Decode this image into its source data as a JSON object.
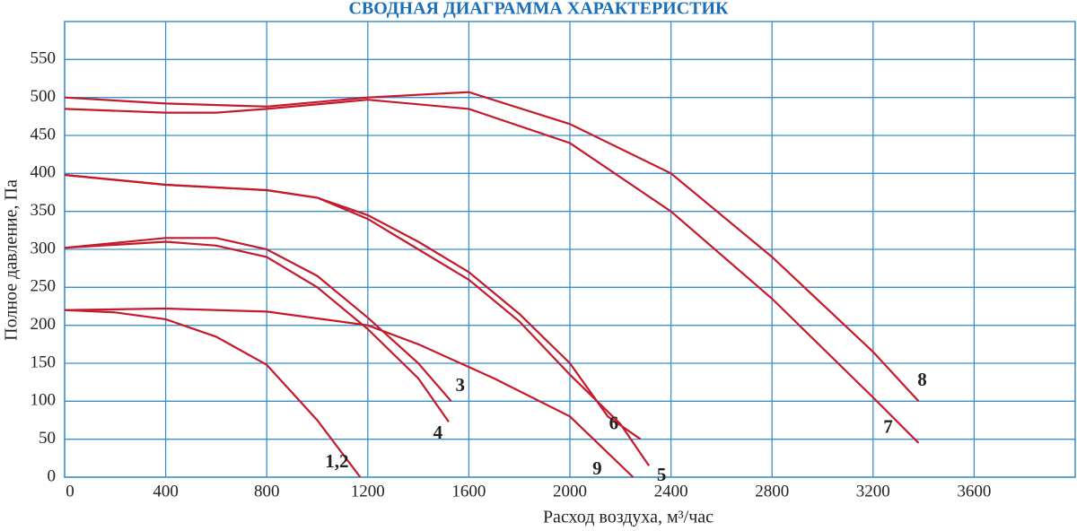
{
  "chart_data": {
    "type": "line",
    "title": "СВОДНАЯ ДИАГРАММА ХАРАКТЕРИСТИК",
    "x_label": "Расход воздуха, м³/час",
    "y_label": "Полное давление, Па",
    "xlim": [
      0,
      4000
    ],
    "ylim": [
      0,
      600
    ],
    "xticks": [
      0,
      400,
      800,
      1200,
      1600,
      2000,
      2400,
      2800,
      3200,
      3600
    ],
    "yticks": [
      0,
      50,
      100,
      150,
      200,
      250,
      300,
      350,
      400,
      450,
      500,
      550
    ],
    "grid": true,
    "series": [
      {
        "name": "1,2",
        "color": "#c41a2c",
        "x": [
          0,
          200,
          400,
          600,
          800,
          1000,
          1170
        ],
        "values": [
          220,
          217,
          208,
          185,
          148,
          75,
          0
        ]
      },
      {
        "name": "3",
        "color": "#c41a2c",
        "x": [
          0,
          400,
          600,
          800,
          1000,
          1200,
          1400,
          1530
        ],
        "values": [
          302,
          315,
          315,
          300,
          265,
          210,
          150,
          100
        ]
      },
      {
        "name": "4",
        "color": "#c41a2c",
        "x": [
          0,
          400,
          600,
          800,
          1000,
          1200,
          1400,
          1520
        ],
        "values": [
          302,
          310,
          305,
          290,
          250,
          195,
          130,
          73
        ]
      },
      {
        "name": "5",
        "color": "#c41a2c",
        "x": [
          0,
          400,
          800,
          1000,
          1200,
          1400,
          1600,
          1800,
          2000,
          2200,
          2313
        ],
        "values": [
          398,
          385,
          378,
          368,
          340,
          300,
          260,
          205,
          135,
          70,
          15
        ]
      },
      {
        "name": "6",
        "color": "#c41a2c",
        "x": [
          0,
          400,
          800,
          1000,
          1200,
          1400,
          1600,
          1800,
          2000,
          2150,
          2280
        ],
        "values": [
          398,
          385,
          378,
          368,
          345,
          310,
          270,
          215,
          150,
          80,
          50
        ]
      },
      {
        "name": "7",
        "color": "#c41a2c",
        "x": [
          0,
          400,
          600,
          800,
          1200,
          1600,
          2000,
          2400,
          2800,
          3200,
          3380
        ],
        "values": [
          485,
          480,
          480,
          485,
          497,
          485,
          440,
          350,
          235,
          105,
          45
        ]
      },
      {
        "name": "8",
        "color": "#c41a2c",
        "x": [
          0,
          400,
          800,
          1200,
          1600,
          2000,
          2400,
          2800,
          3200,
          3380
        ],
        "values": [
          500,
          492,
          488,
          500,
          507,
          465,
          400,
          290,
          165,
          100
        ]
      },
      {
        "name": "9",
        "color": "#c41a2c",
        "x": [
          0,
          400,
          800,
          1200,
          1400,
          1700,
          2000,
          2250
        ],
        "values": [
          220,
          222,
          218,
          200,
          175,
          130,
          80,
          0
        ]
      }
    ]
  }
}
